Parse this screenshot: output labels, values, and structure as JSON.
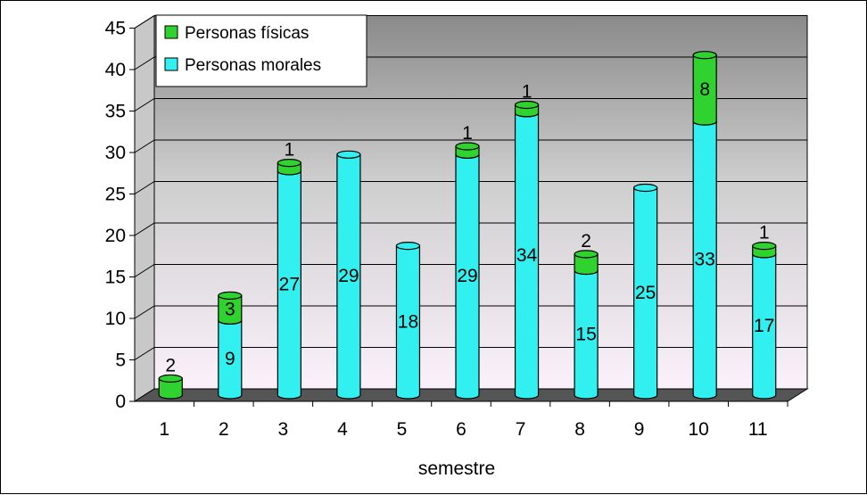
{
  "chart_data": {
    "type": "bar",
    "stacked": true,
    "three_d": true,
    "title": "",
    "xlabel": "semestre",
    "ylabel": "",
    "ylim": [
      0,
      45
    ],
    "yticks": [
      0,
      5,
      10,
      15,
      20,
      25,
      30,
      35,
      40,
      45
    ],
    "grid": true,
    "legend_position": "top-left",
    "categories": [
      "1",
      "2",
      "3",
      "4",
      "5",
      "6",
      "7",
      "8",
      "9",
      "10",
      "11"
    ],
    "series": [
      {
        "name": "Personas morales",
        "color": "#33f0f0",
        "values": [
          0,
          9,
          27,
          29,
          18,
          29,
          34,
          15,
          25,
          33,
          17
        ]
      },
      {
        "name": "Personas físicas",
        "color": "#2fd22f",
        "values": [
          2,
          3,
          1,
          0,
          0,
          1,
          1,
          2,
          0,
          8,
          1
        ]
      }
    ],
    "data_labels": {
      "Personas morales": [
        "",
        "9",
        "27",
        "29",
        "18",
        "29",
        "34",
        "15",
        "25",
        "33",
        "17"
      ],
      "Personas físicas": [
        "2",
        "3",
        "1",
        "",
        "",
        "1",
        "1",
        "2",
        "",
        "8",
        "1"
      ]
    }
  }
}
